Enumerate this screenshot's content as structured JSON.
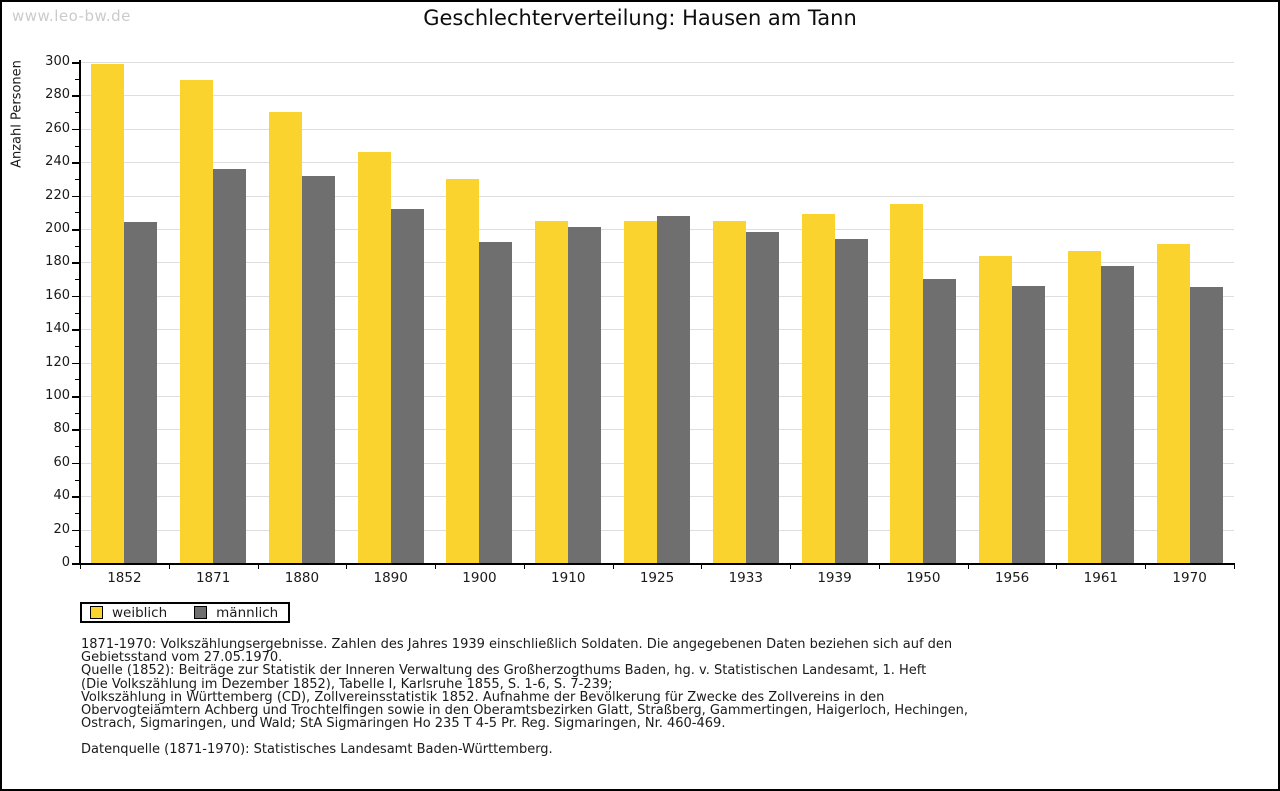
{
  "watermark": "www.leo-bw.de",
  "title": "Geschlechterverteilung: Hausen am Tann",
  "chart_data": {
    "type": "bar",
    "title": "Geschlechterverteilung: Hausen am Tann",
    "xlabel": "",
    "ylabel": "Anzahl Personen",
    "ylim": [
      0,
      300
    ],
    "ytick_step": 20,
    "ytick_minor_step": 10,
    "grid": true,
    "legend_position": "bottom-left",
    "categories": [
      "1852",
      "1871",
      "1880",
      "1890",
      "1900",
      "1910",
      "1925",
      "1933",
      "1939",
      "1950",
      "1956",
      "1961",
      "1970"
    ],
    "series": [
      {
        "name": "weiblich",
        "color": "#fbd32e",
        "values": [
          299,
          289,
          270,
          246,
          230,
          205,
          205,
          205,
          209,
          215,
          184,
          187,
          191
        ]
      },
      {
        "name": "männlich",
        "color": "#6f6f6f",
        "values": [
          204,
          236,
          232,
          212,
          192,
          201,
          208,
          198,
          194,
          170,
          166,
          178,
          165
        ]
      }
    ]
  },
  "legend": {
    "items": [
      {
        "label": "weiblich",
        "color": "#fbd32e"
      },
      {
        "label": "männlich",
        "color": "#6f6f6f"
      }
    ]
  },
  "footer": {
    "lines": [
      "1871-1970: Volkszählungsergebnisse. Zahlen des Jahres 1939 einschließlich Soldaten. Die angegebenen Daten beziehen sich auf den",
      "Gebietsstand vom 27.05.1970.",
      "Quelle (1852): Beiträge zur Statistik der Inneren Verwaltung des Großherzogthums Baden, hg. v. Statistischen Landesamt, 1. Heft",
      "(Die Volkszählung im Dezember 1852), Tabelle I, Karlsruhe 1855, S. 1-6, S. 7-239;",
      "Volkszählung in Württemberg (CD), Zollvereinsstatistik 1852. Aufnahme der Bevölkerung für Zwecke des Zollvereins in den",
      "Obervogteiämtern Achberg und Trochtelfingen sowie in den Oberamtsbezirken Glatt, Straßberg, Gammertingen, Haigerloch, Hechingen,",
      "Ostrach, Sigmaringen, und Wald; StA Sigmaringen Ho 235 T 4-5 Pr. Reg. Sigmaringen, Nr. 460-469."
    ],
    "datenquelle": "Datenquelle (1871-1970): Statistisches Landesamt Baden-Württemberg."
  },
  "colors": {
    "background": "#ffffff",
    "frame_border": "#000000",
    "gridline": "#dedede",
    "axis": "#000000",
    "watermark": "#cbcbcb",
    "bar_weiblich": "#fbd32e",
    "bar_maennlich": "#6f6f6f"
  }
}
